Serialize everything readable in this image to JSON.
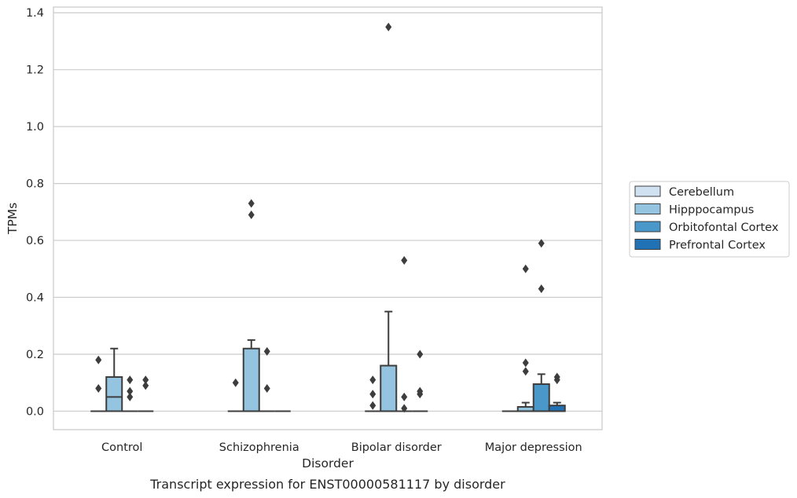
{
  "chart_data": {
    "type": "box",
    "caption": "Transcript expression for ENST00000581117 by disorder",
    "xlabel": "Disorder",
    "ylabel": "TPMs",
    "ylim": [
      -0.065,
      1.42
    ],
    "yticks": [
      0.0,
      0.2,
      0.4,
      0.6,
      0.8,
      1.0,
      1.2,
      1.4
    ],
    "ytick_labels": [
      "0.0",
      "0.2",
      "0.4",
      "0.6",
      "0.8",
      "1.0",
      "1.2",
      "1.4"
    ],
    "grid": true,
    "legend_position": "right",
    "categories": [
      "Control",
      "Schizophrenia",
      "Bipolar disorder",
      "Major depression"
    ],
    "series": [
      {
        "name": "Cerebellum",
        "color": "#d0e1f2",
        "boxes": [
          {
            "category": "Control",
            "q1": 0,
            "median": 0,
            "q3": 0,
            "whisker_low": 0,
            "whisker_high": 0,
            "outliers": [
              0.08,
              0.18
            ]
          },
          {
            "category": "Schizophrenia",
            "q1": 0,
            "median": 0,
            "q3": 0,
            "whisker_low": 0,
            "whisker_high": 0,
            "outliers": [
              0.1
            ]
          },
          {
            "category": "Bipolar disorder",
            "q1": 0,
            "median": 0,
            "q3": 0,
            "whisker_low": 0,
            "whisker_high": 0,
            "outliers": [
              0.02,
              0.06,
              0.11
            ]
          },
          {
            "category": "Major depression",
            "q1": 0,
            "median": 0,
            "q3": 0,
            "whisker_low": 0,
            "whisker_high": 0,
            "outliers": []
          }
        ]
      },
      {
        "name": "Hipppocampus",
        "color": "#94c4df",
        "boxes": [
          {
            "category": "Control",
            "q1": 0,
            "median": 0.05,
            "q3": 0.12,
            "whisker_low": 0,
            "whisker_high": 0.22,
            "outliers": []
          },
          {
            "category": "Schizophrenia",
            "q1": 0,
            "median": 0,
            "q3": 0.22,
            "whisker_low": 0,
            "whisker_high": 0.25,
            "outliers": [
              0.69,
              0.73
            ]
          },
          {
            "category": "Bipolar disorder",
            "q1": 0,
            "median": 0,
            "q3": 0.16,
            "whisker_low": 0,
            "whisker_high": 0.35,
            "outliers": [
              1.35
            ]
          },
          {
            "category": "Major depression",
            "q1": 0,
            "median": 0,
            "q3": 0.015,
            "whisker_low": 0,
            "whisker_high": 0.03,
            "outliers": [
              0.14,
              0.17,
              0.5
            ]
          }
        ]
      },
      {
        "name": "Orbitofontal Cortex",
        "color": "#4a98c9",
        "boxes": [
          {
            "category": "Control",
            "q1": 0,
            "median": 0,
            "q3": 0,
            "whisker_low": 0,
            "whisker_high": 0,
            "outliers": [
              0.05,
              0.07,
              0.11
            ]
          },
          {
            "category": "Schizophrenia",
            "q1": 0,
            "median": 0,
            "q3": 0,
            "whisker_low": 0,
            "whisker_high": 0,
            "outliers": [
              0.08,
              0.21
            ]
          },
          {
            "category": "Bipolar disorder",
            "q1": 0,
            "median": 0,
            "q3": 0,
            "whisker_low": 0,
            "whisker_high": 0,
            "outliers": [
              0.01,
              0.05,
              0.53
            ]
          },
          {
            "category": "Major depression",
            "q1": 0,
            "median": 0,
            "q3": 0.095,
            "whisker_low": 0,
            "whisker_high": 0.13,
            "outliers": [
              0.43,
              0.59
            ]
          }
        ]
      },
      {
        "name": "Prefrontal Cortex",
        "color": "#2171b5",
        "boxes": [
          {
            "category": "Control",
            "q1": 0,
            "median": 0,
            "q3": 0,
            "whisker_low": 0,
            "whisker_high": 0,
            "outliers": [
              0.09,
              0.11
            ]
          },
          {
            "category": "Schizophrenia",
            "q1": 0,
            "median": 0,
            "q3": 0,
            "whisker_low": 0,
            "whisker_high": 0,
            "outliers": []
          },
          {
            "category": "Bipolar disorder",
            "q1": 0,
            "median": 0,
            "q3": 0,
            "whisker_low": 0,
            "whisker_high": 0,
            "outliers": [
              0.06,
              0.07,
              0.2
            ]
          },
          {
            "category": "Major depression",
            "q1": 0,
            "median": 0,
            "q3": 0.02,
            "whisker_low": 0,
            "whisker_high": 0.03,
            "outliers": [
              0.11,
              0.12
            ]
          }
        ]
      }
    ]
  }
}
